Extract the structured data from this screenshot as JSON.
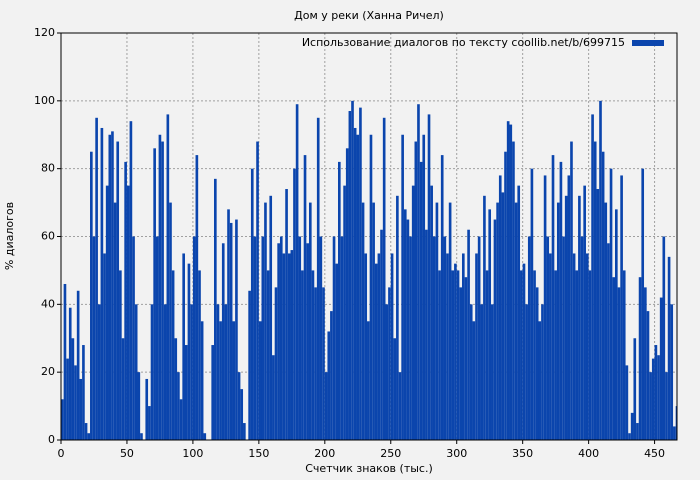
{
  "chart_data": {
    "type": "bar",
    "title": "Дом у реки (Ханна Ричел)",
    "x_label": "Счетчик знаков (тыс.)",
    "y_label": "% диалогов",
    "x": [
      0,
      2,
      4,
      6,
      8,
      10,
      12,
      14,
      16,
      18,
      20,
      22,
      24,
      26,
      28,
      30,
      32,
      34,
      36,
      38,
      40,
      42,
      44,
      46,
      48,
      50,
      52,
      54,
      56,
      58,
      60,
      62,
      64,
      66,
      68,
      70,
      72,
      74,
      76,
      78,
      80,
      82,
      84,
      86,
      88,
      90,
      92,
      94,
      96,
      98,
      100,
      102,
      104,
      106,
      108,
      110,
      112,
      114,
      116,
      118,
      120,
      122,
      124,
      126,
      128,
      130,
      132,
      134,
      136,
      138,
      140,
      142,
      144,
      146,
      148,
      150,
      152,
      154,
      156,
      158,
      160,
      162,
      164,
      166,
      168,
      170,
      172,
      174,
      176,
      178,
      180,
      182,
      184,
      186,
      188,
      190,
      192,
      194,
      196,
      198,
      200,
      202,
      204,
      206,
      208,
      210,
      212,
      214,
      216,
      218,
      220,
      222,
      224,
      226,
      228,
      230,
      232,
      234,
      236,
      238,
      240,
      242,
      244,
      246,
      248,
      250,
      252,
      254,
      256,
      258,
      260,
      262,
      264,
      266,
      268,
      270,
      272,
      274,
      276,
      278,
      280,
      282,
      284,
      286,
      288,
      290,
      292,
      294,
      296,
      298,
      300,
      302,
      304,
      306,
      308,
      310,
      312,
      314,
      316,
      318,
      320,
      322,
      324,
      326,
      328,
      330,
      332,
      334,
      336,
      338,
      340,
      342,
      344,
      346,
      348,
      350,
      352,
      354,
      356,
      358,
      360,
      362,
      364,
      366,
      368,
      370,
      372,
      374,
      376,
      378,
      380,
      382,
      384,
      386,
      388,
      390,
      392,
      394,
      396,
      398,
      400,
      402,
      404,
      406,
      408,
      410,
      412,
      414,
      416,
      418,
      420,
      422,
      424,
      426,
      428,
      430,
      432,
      434,
      436,
      438,
      440,
      442,
      444,
      446,
      448,
      450,
      452,
      454,
      456,
      458,
      460,
      462,
      464,
      466
    ],
    "series": [
      {
        "name": "Использование диалогов по тексту coollib.net/b/699715",
        "color": "#0b45ad",
        "values": [
          12,
          46,
          24,
          39,
          30,
          22,
          44,
          18,
          28,
          5,
          2,
          85,
          60,
          95,
          40,
          92,
          55,
          75,
          90,
          91,
          70,
          88,
          50,
          30,
          82,
          75,
          94,
          60,
          40,
          20,
          2,
          0,
          18,
          10,
          40,
          86,
          60,
          90,
          88,
          40,
          96,
          70,
          50,
          30,
          20,
          12,
          55,
          28,
          52,
          40,
          60,
          84,
          50,
          35,
          2,
          0,
          0,
          28,
          77,
          40,
          35,
          58,
          40,
          68,
          64,
          35,
          65,
          20,
          15,
          5,
          0,
          44,
          80,
          60,
          88,
          35,
          60,
          70,
          50,
          72,
          25,
          45,
          58,
          60,
          55,
          74,
          55,
          56,
          80,
          99,
          60,
          50,
          84,
          58,
          70,
          50,
          45,
          95,
          60,
          45,
          20,
          32,
          38,
          60,
          52,
          82,
          60,
          75,
          86,
          97,
          100,
          92,
          90,
          98,
          70,
          55,
          35,
          90,
          70,
          52,
          55,
          62,
          95,
          40,
          45,
          55,
          30,
          72,
          20,
          90,
          68,
          65,
          60,
          75,
          88,
          99,
          82,
          90,
          62,
          96,
          75,
          60,
          70,
          50,
          84,
          60,
          55,
          70,
          50,
          52,
          50,
          45,
          55,
          48,
          62,
          40,
          35,
          55,
          60,
          40,
          72,
          50,
          68,
          40,
          65,
          70,
          78,
          73,
          85,
          94,
          93,
          88,
          70,
          75,
          50,
          52,
          40,
          60,
          80,
          50,
          45,
          35,
          40,
          78,
          60,
          55,
          84,
          50,
          70,
          82,
          60,
          72,
          78,
          88,
          55,
          50,
          72,
          60,
          75,
          55,
          50,
          96,
          88,
          74,
          100,
          85,
          70,
          58,
          80,
          48,
          68,
          45,
          78,
          50,
          22,
          2,
          8,
          30,
          5,
          48,
          80,
          45,
          38,
          20,
          24,
          28,
          25,
          42,
          60,
          20,
          54,
          40,
          4,
          10
        ]
      }
    ],
    "xlim": [
      0,
      467
    ],
    "ylim": [
      0,
      120
    ],
    "xticks": [
      0,
      50,
      100,
      150,
      200,
      250,
      300,
      350,
      400,
      450
    ],
    "yticks": [
      0,
      20,
      40,
      60,
      80,
      100,
      120
    ],
    "grid": true,
    "legend": "upper right"
  }
}
